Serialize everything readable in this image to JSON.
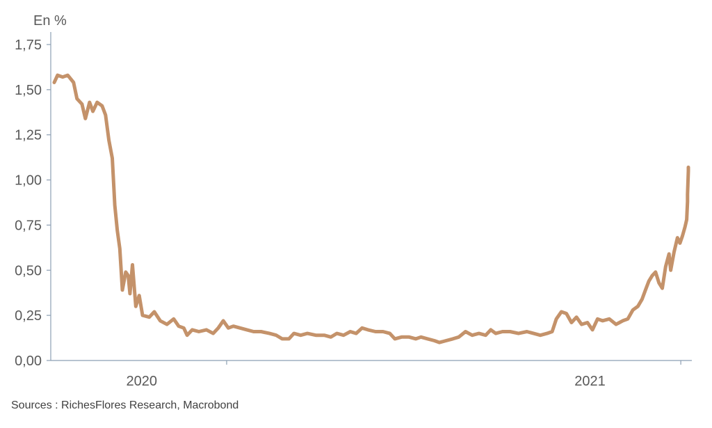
{
  "chart_data": {
    "type": "line",
    "ylabel": "En %",
    "ylim": [
      0,
      1.75
    ],
    "yticks": [
      {
        "value": 0,
        "label": "0,00"
      },
      {
        "value": 0.25,
        "label": "0,25"
      },
      {
        "value": 0.5,
        "label": "0,50"
      },
      {
        "value": 0.75,
        "label": "0,75"
      },
      {
        "value": 1.0,
        "label": "1,00"
      },
      {
        "value": 1.25,
        "label": "1,25"
      },
      {
        "value": 1.5,
        "label": "1,50"
      },
      {
        "value": 1.75,
        "label": "1,75"
      }
    ],
    "xlim": [
      "2019-12-08",
      "2021-12-31"
    ],
    "xticks": [
      "2020-06-30",
      "2021-12-22"
    ],
    "xlabels": [
      {
        "label": "2020",
        "date": "2020-03-21"
      },
      {
        "label": "2021",
        "date": "2021-09-05"
      }
    ],
    "grid": false,
    "series": [
      {
        "color": "#c4926a",
        "points": [
          [
            "2019-12-08",
            1.54
          ],
          [
            "2019-12-12",
            1.58
          ],
          [
            "2019-12-18",
            1.57
          ],
          [
            "2019-12-24",
            1.58
          ],
          [
            "2019-12-31",
            1.54
          ],
          [
            "2020-01-04",
            1.45
          ],
          [
            "2020-01-10",
            1.42
          ],
          [
            "2020-01-14",
            1.34
          ],
          [
            "2020-01-19",
            1.43
          ],
          [
            "2020-01-23",
            1.38
          ],
          [
            "2020-01-28",
            1.43
          ],
          [
            "2020-02-03",
            1.41
          ],
          [
            "2020-02-07",
            1.36
          ],
          [
            "2020-02-11",
            1.22
          ],
          [
            "2020-02-15",
            1.12
          ],
          [
            "2020-02-18",
            0.86
          ],
          [
            "2020-02-21",
            0.72
          ],
          [
            "2020-02-24",
            0.62
          ],
          [
            "2020-02-27",
            0.39
          ],
          [
            "2020-03-02",
            0.49
          ],
          [
            "2020-03-05",
            0.47
          ],
          [
            "2020-03-07",
            0.37
          ],
          [
            "2020-03-10",
            0.53
          ],
          [
            "2020-03-14",
            0.3
          ],
          [
            "2020-03-18",
            0.36
          ],
          [
            "2020-03-22",
            0.25
          ],
          [
            "2020-03-30",
            0.24
          ],
          [
            "2020-04-05",
            0.27
          ],
          [
            "2020-04-12",
            0.22
          ],
          [
            "2020-04-20",
            0.2
          ],
          [
            "2020-04-28",
            0.23
          ],
          [
            "2020-05-04",
            0.19
          ],
          [
            "2020-05-10",
            0.18
          ],
          [
            "2020-05-14",
            0.14
          ],
          [
            "2020-05-20",
            0.17
          ],
          [
            "2020-05-28",
            0.16
          ],
          [
            "2020-06-06",
            0.17
          ],
          [
            "2020-06-14",
            0.15
          ],
          [
            "2020-06-20",
            0.18
          ],
          [
            "2020-06-26",
            0.22
          ],
          [
            "2020-07-02",
            0.18
          ],
          [
            "2020-07-08",
            0.19
          ],
          [
            "2020-07-16",
            0.18
          ],
          [
            "2020-07-24",
            0.17
          ],
          [
            "2020-08-01",
            0.16
          ],
          [
            "2020-08-10",
            0.16
          ],
          [
            "2020-08-20",
            0.15
          ],
          [
            "2020-08-28",
            0.14
          ],
          [
            "2020-09-04",
            0.12
          ],
          [
            "2020-09-12",
            0.12
          ],
          [
            "2020-09-18",
            0.15
          ],
          [
            "2020-09-26",
            0.14
          ],
          [
            "2020-10-04",
            0.15
          ],
          [
            "2020-10-14",
            0.14
          ],
          [
            "2020-10-24",
            0.14
          ],
          [
            "2020-11-01",
            0.13
          ],
          [
            "2020-11-08",
            0.15
          ],
          [
            "2020-11-16",
            0.14
          ],
          [
            "2020-11-24",
            0.16
          ],
          [
            "2020-12-01",
            0.15
          ],
          [
            "2020-12-08",
            0.18
          ],
          [
            "2020-12-15",
            0.17
          ],
          [
            "2020-12-24",
            0.16
          ],
          [
            "2021-01-02",
            0.16
          ],
          [
            "2021-01-10",
            0.15
          ],
          [
            "2021-01-16",
            0.12
          ],
          [
            "2021-01-24",
            0.13
          ],
          [
            "2021-02-02",
            0.13
          ],
          [
            "2021-02-10",
            0.12
          ],
          [
            "2021-02-16",
            0.13
          ],
          [
            "2021-02-24",
            0.12
          ],
          [
            "2021-03-04",
            0.11
          ],
          [
            "2021-03-10",
            0.1
          ],
          [
            "2021-03-18",
            0.11
          ],
          [
            "2021-03-26",
            0.12
          ],
          [
            "2021-04-02",
            0.13
          ],
          [
            "2021-04-10",
            0.16
          ],
          [
            "2021-04-18",
            0.14
          ],
          [
            "2021-04-26",
            0.15
          ],
          [
            "2021-05-04",
            0.14
          ],
          [
            "2021-05-10",
            0.17
          ],
          [
            "2021-05-16",
            0.15
          ],
          [
            "2021-05-24",
            0.16
          ],
          [
            "2021-06-02",
            0.16
          ],
          [
            "2021-06-12",
            0.15
          ],
          [
            "2021-06-22",
            0.16
          ],
          [
            "2021-06-30",
            0.15
          ],
          [
            "2021-07-08",
            0.14
          ],
          [
            "2021-07-16",
            0.15
          ],
          [
            "2021-07-22",
            0.16
          ],
          [
            "2021-07-27",
            0.23
          ],
          [
            "2021-08-02",
            0.27
          ],
          [
            "2021-08-08",
            0.26
          ],
          [
            "2021-08-14",
            0.21
          ],
          [
            "2021-08-20",
            0.24
          ],
          [
            "2021-08-26",
            0.2
          ],
          [
            "2021-09-02",
            0.21
          ],
          [
            "2021-09-08",
            0.17
          ],
          [
            "2021-09-14",
            0.23
          ],
          [
            "2021-09-20",
            0.22
          ],
          [
            "2021-09-28",
            0.23
          ],
          [
            "2021-10-06",
            0.2
          ],
          [
            "2021-10-14",
            0.22
          ],
          [
            "2021-10-20",
            0.23
          ],
          [
            "2021-10-26",
            0.28
          ],
          [
            "2021-11-01",
            0.3
          ],
          [
            "2021-11-06",
            0.34
          ],
          [
            "2021-11-10",
            0.39
          ],
          [
            "2021-11-14",
            0.44
          ],
          [
            "2021-11-18",
            0.47
          ],
          [
            "2021-11-22",
            0.49
          ],
          [
            "2021-11-26",
            0.43
          ],
          [
            "2021-11-30",
            0.4
          ],
          [
            "2021-12-04",
            0.52
          ],
          [
            "2021-12-08",
            0.59
          ],
          [
            "2021-12-10",
            0.5
          ],
          [
            "2021-12-14",
            0.6
          ],
          [
            "2021-12-18",
            0.68
          ],
          [
            "2021-12-21",
            0.65
          ],
          [
            "2021-12-24",
            0.69
          ],
          [
            "2021-12-27",
            0.74
          ],
          [
            "2021-12-29",
            0.78
          ],
          [
            "2021-12-30",
            0.88
          ],
          [
            "2021-12-30",
            0.92
          ],
          [
            "2021-12-31",
            1.05
          ],
          [
            "2021-12-31",
            1.07
          ]
        ]
      }
    ]
  },
  "footer": {
    "source": "Sources : RichesFlores Research, Macrobond"
  }
}
